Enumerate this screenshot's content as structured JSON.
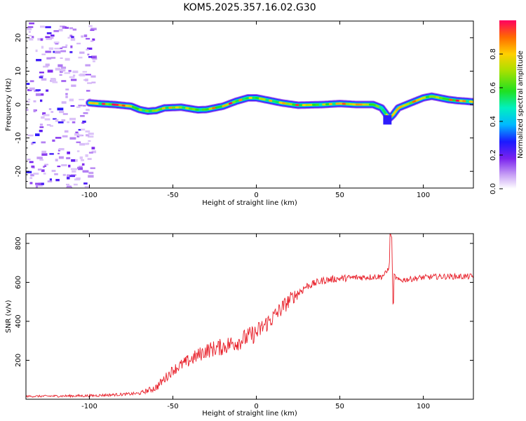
{
  "title": "KOM5.2025.357.16.02.G30",
  "colors": {
    "snr_line": "#e8202a",
    "axis": "#000000",
    "background": "#ffffff"
  },
  "chart_data": [
    {
      "type": "heatmap",
      "name": "spectrogram",
      "xlabel": "Height of straight line (km)",
      "ylabel": "Frequency (Hz)",
      "xlim": [
        -138,
        130
      ],
      "ylim": [
        -25,
        25
      ],
      "xticks": [
        -100,
        -50,
        0,
        50,
        100
      ],
      "xtick_labels": [
        "-100",
        "-50",
        "0",
        "50",
        "100"
      ],
      "yticks": [
        -20,
        -10,
        0,
        10,
        20
      ],
      "ytick_labels": [
        "-20",
        "-10",
        "0",
        "10",
        "20"
      ],
      "ridge_x": [
        -100,
        -95,
        -85,
        -75,
        -70,
        -65,
        -60,
        -55,
        -45,
        -35,
        -30,
        -20,
        -12,
        -5,
        0,
        5,
        15,
        25,
        40,
        50,
        60,
        70,
        75,
        78,
        80,
        82,
        85,
        90,
        95,
        100,
        105,
        110,
        115,
        120,
        125,
        130
      ],
      "ridge_freq": [
        0.5,
        0.3,
        0.0,
        -0.5,
        -1.5,
        -2.0,
        -1.8,
        -1.0,
        -0.8,
        -1.6,
        -1.5,
        -0.5,
        1.0,
        2.0,
        2.0,
        1.5,
        0.5,
        -0.2,
        0.0,
        0.3,
        0.0,
        0.0,
        -1.0,
        -3.0,
        -4.0,
        -3.0,
        -1.0,
        0.0,
        1.0,
        2.0,
        2.5,
        2.0,
        1.5,
        1.2,
        1.0,
        0.8
      ],
      "noise_region_x": [
        -138,
        -100
      ],
      "colorbar": {
        "label": "Normalized spectral amplitude",
        "range": [
          0.0,
          1.0
        ],
        "ticks": [
          0.0,
          0.2,
          0.4,
          0.6,
          0.8
        ],
        "tick_labels": [
          "0.0",
          "0.2",
          "0.4",
          "0.6",
          "0.8"
        ]
      }
    },
    {
      "type": "line",
      "name": "snr",
      "xlabel": "Height of straight line (km)",
      "ylabel": "SNR (v/v)",
      "xlim": [
        -138,
        130
      ],
      "ylim": [
        0,
        850
      ],
      "xticks": [
        -100,
        -50,
        0,
        50,
        100
      ],
      "xtick_labels": [
        "-100",
        "-50",
        "0",
        "50",
        "100"
      ],
      "yticks": [
        200,
        400,
        600,
        800
      ],
      "ytick_labels": [
        "200",
        "400",
        "600",
        "800"
      ],
      "trend_x": [
        -138,
        -100,
        -80,
        -70,
        -60,
        -50,
        -40,
        -30,
        -20,
        -10,
        0,
        10,
        20,
        30,
        40,
        50,
        60,
        70,
        75,
        78,
        80,
        82,
        85,
        90,
        100,
        110,
        120,
        130
      ],
      "trend_y": [
        15,
        18,
        25,
        30,
        60,
        150,
        200,
        250,
        270,
        300,
        340,
        420,
        510,
        580,
        610,
        620,
        625,
        628,
        630,
        650,
        700,
        640,
        610,
        615,
        625,
        630,
        630,
        630
      ],
      "noise_amplitude_x": [
        -138,
        -70,
        -60,
        -40,
        -20,
        0,
        20,
        30,
        78,
        83,
        130
      ],
      "noise_amplitude_y": [
        5,
        8,
        20,
        35,
        45,
        50,
        40,
        20,
        15,
        15,
        15
      ]
    }
  ]
}
